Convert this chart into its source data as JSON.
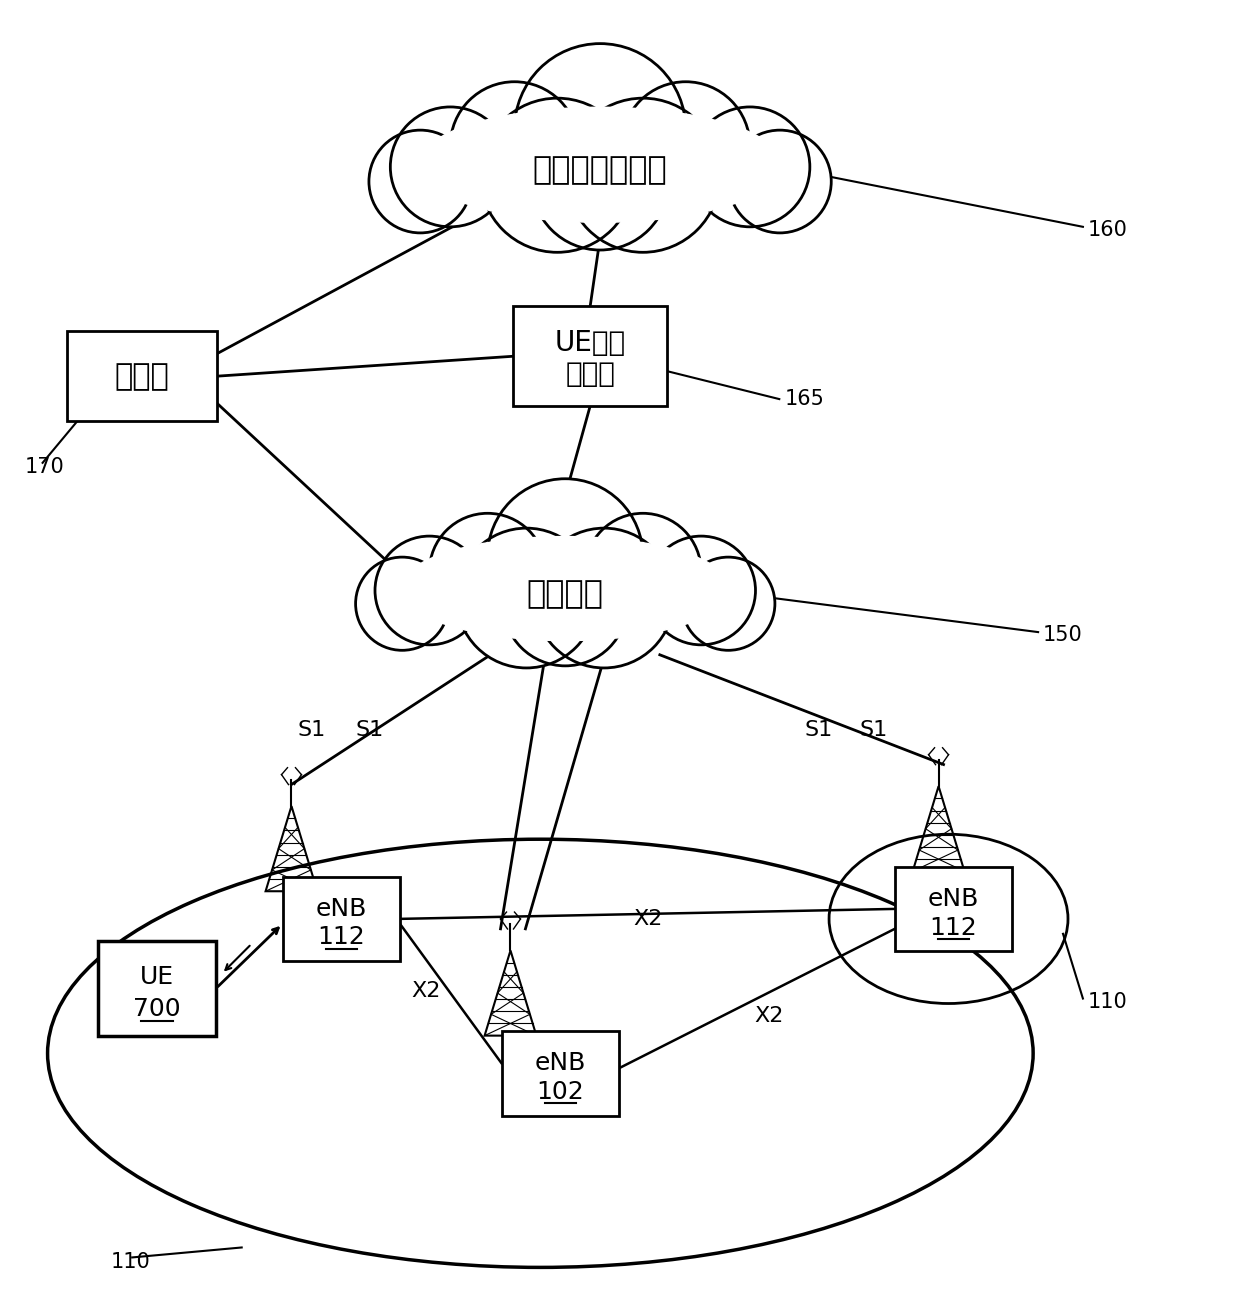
{
  "bg_color": "#ffffff",
  "text_color": "#000000",
  "cloud_internet_label": "互联网服务网络",
  "cloud_internet_id": "160",
  "cloud_core_label": "核心网络",
  "cloud_core_id": "150",
  "server_label": "服务器",
  "server_id": "170",
  "ue_data_line1": "UE数据",
  "ue_data_line2": "接收器",
  "ue_data_id": "165",
  "enb_left_label": "eNB\n112",
  "enb_right_label": "eNB\n112",
  "enb_center_label": "eNB\n102",
  "ue_label": "UE\n700",
  "large_ellipse_id": "110",
  "small_ellipse_id": "110"
}
